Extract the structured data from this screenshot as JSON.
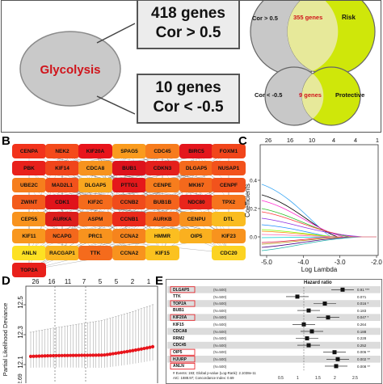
{
  "panelA": {
    "center_label": "Glycolysis",
    "box_top": {
      "line1": "418 genes",
      "line2": "Cor > 0.5"
    },
    "box_bottom": {
      "line1": "10 genes",
      "line2": "Cor < -0.5"
    },
    "venn_top": {
      "left": "Cor > 0.5",
      "middle": "355 genes",
      "right": "Risk"
    },
    "venn_bottom": {
      "left": "Cor < -0.5",
      "middle": "9 genes",
      "right": "Protective"
    }
  },
  "panelB": {
    "letter": "B",
    "nodes": [
      {
        "label": "CENPA",
        "color": "#f2331c"
      },
      {
        "label": "NEK2",
        "color": "#f44a1b"
      },
      {
        "label": "KIF20A",
        "color": "#e8141b"
      },
      {
        "label": "SPAG5",
        "color": "#fa9b1e"
      },
      {
        "label": "CDC45",
        "color": "#f77c1d"
      },
      {
        "label": "BIRC5",
        "color": "#e4161d"
      },
      {
        "label": "FOXM1",
        "color": "#f1451b"
      },
      {
        "label": "PBK",
        "color": "#e8201b"
      },
      {
        "label": "KIF14",
        "color": "#f0451b"
      },
      {
        "label": "CDCA8",
        "color": "#f7931e"
      },
      {
        "label": "BUB1",
        "color": "#dd121c"
      },
      {
        "label": "CDKN3",
        "color": "#e4201c"
      },
      {
        "label": "DLGAP5",
        "color": "#f56a1c"
      },
      {
        "label": "NUSAP1",
        "color": "#f2521c"
      },
      {
        "label": "UBE2C",
        "color": "#f67e1d"
      },
      {
        "label": "MAD2L1",
        "color": "#f2521c"
      },
      {
        "label": "DLGAP5",
        "color": "#f9a71f"
      },
      {
        "label": "PTTG1",
        "color": "#e5181b"
      },
      {
        "label": "CENPE",
        "color": "#f77d1d"
      },
      {
        "label": "MKI67",
        "color": "#f4691c"
      },
      {
        "label": "CENPF",
        "color": "#f2531c"
      },
      {
        "label": "ZWINT",
        "color": "#f35b1c"
      },
      {
        "label": "CDK1",
        "color": "#e0131b"
      },
      {
        "label": "KIF2C",
        "color": "#f56b1c"
      },
      {
        "label": "CCNB2",
        "color": "#f04b1b"
      },
      {
        "label": "BUB1B",
        "color": "#f4631c"
      },
      {
        "label": "NDC80",
        "color": "#e9261b"
      },
      {
        "label": "TPX2",
        "color": "#f6741d"
      },
      {
        "label": "CEP55",
        "color": "#f8931e"
      },
      {
        "label": "AURKA",
        "color": "#dc1e1c"
      },
      {
        "label": "ASPM",
        "color": "#f5721d"
      },
      {
        "label": "CCNB1",
        "color": "#ea2a1b"
      },
      {
        "label": "AURKB",
        "color": "#f56b1c"
      },
      {
        "label": "CENPU",
        "color": "#f8931e"
      },
      {
        "label": "DTL",
        "color": "#fabc20"
      },
      {
        "label": "KIF11",
        "color": "#f8971e"
      },
      {
        "label": "NCAPG",
        "color": "#f4681c"
      },
      {
        "label": "PRC1",
        "color": "#f8931e"
      },
      {
        "label": "CCNA2",
        "color": "#f6841d"
      },
      {
        "label": "HMMR",
        "color": "#fbbe20"
      },
      {
        "label": "OIP5",
        "color": "#fab01f"
      },
      {
        "label": "KIF23",
        "color": "#f8931e"
      },
      {
        "label": "ANLN",
        "color": "#fde123"
      },
      {
        "label": "RACGAP1",
        "color": "#fab520"
      },
      {
        "label": "TTK",
        "color": "#f56b1c"
      },
      {
        "label": "CCNA2",
        "color": "#f8931e"
      },
      {
        "label": "KIF15",
        "color": "#fbc21f"
      },
      {
        "label": "CDC20",
        "color": "#fcd322"
      },
      {
        "label": "TOP2A",
        "color": "#e8201b"
      }
    ]
  },
  "panelC": {
    "letter": "C",
    "top_ticks": [
      "26",
      "16",
      "10",
      "4",
      "4",
      "1"
    ],
    "xlabel": "Log Lambda",
    "ylabel": "Coefficients",
    "x_ticks": [
      "-5.0",
      "-4.0",
      "-3.0",
      "-2.0"
    ],
    "y_ticks": [
      "0.0",
      "0.2",
      "0.4"
    ]
  },
  "panelD": {
    "letter": "D",
    "top_ticks": [
      "26",
      "16",
      "11",
      "7",
      "5",
      "5",
      "2",
      "1"
    ],
    "ylabel": "Partial Likelihood Deviance",
    "y_ticks": [
      "12.1",
      "12.3",
      "12.5"
    ],
    "partial_bottom_tick": "12.69"
  },
  "panelE": {
    "letter": "E",
    "header": "Hazard ratio",
    "rows": [
      {
        "gene": "DLGAP5",
        "n": "(N=500)",
        "val": "0.91 ***",
        "boxed": true
      },
      {
        "gene": "TTK",
        "n": "(N=500)",
        "val": "0.071",
        "boxed": false
      },
      {
        "gene": "TOP2A",
        "n": "(N=500)",
        "val": "0.016 *",
        "boxed": true
      },
      {
        "gene": "BUB1",
        "n": "(N=500)",
        "val": "0.183",
        "boxed": false
      },
      {
        "gene": "KIF20A",
        "n": "(N=500)",
        "val": "0.047 *",
        "boxed": true
      },
      {
        "gene": "KIF15",
        "n": "(N=500)",
        "val": "0.264",
        "boxed": false
      },
      {
        "gene": "CDCA8",
        "n": "(N=500)",
        "val": "0.188",
        "boxed": false
      },
      {
        "gene": "RRM2",
        "n": "(N=500)",
        "val": "0.228",
        "boxed": false
      },
      {
        "gene": "CDC45",
        "n": "(N=500)",
        "val": "0.252",
        "boxed": false
      },
      {
        "gene": "OIP5",
        "n": "(N=500)",
        "val": "0.006 **",
        "boxed": true
      },
      {
        "gene": "HJURP",
        "n": "(N=500)",
        "val": "0.002 **",
        "boxed": true
      },
      {
        "gene": "ANLN",
        "n": "(N=500)",
        "val": "0.008 **",
        "boxed": true
      }
    ],
    "footer1": "# Events: 193; Global p-value (Log-Rank): 2.1038e-11",
    "footer2": "AIC: 1888.97; Concordance Index: 0.69",
    "x_ticks": [
      "0.5",
      "1",
      "1.5",
      "2",
      "2.5"
    ]
  }
}
